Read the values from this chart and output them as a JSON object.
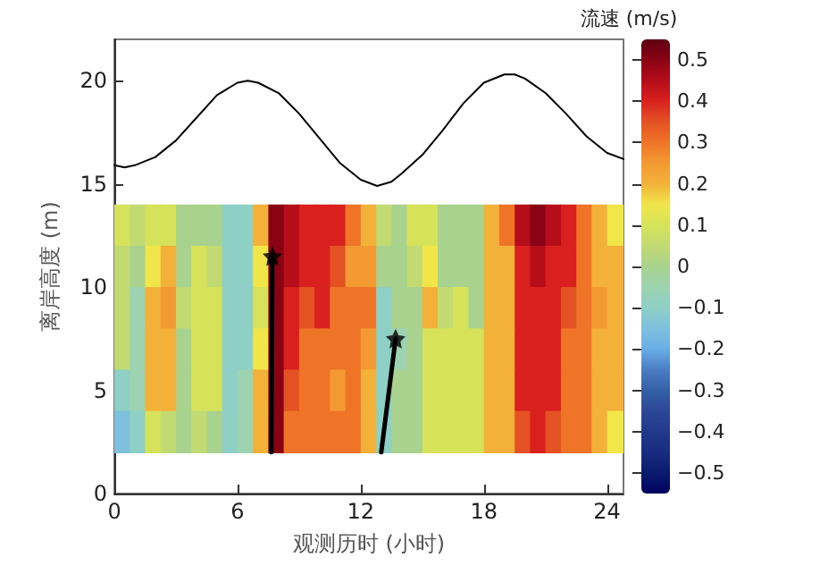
{
  "chart_data": {
    "type": "heatmap",
    "xlabel": "观测历时 (小时)",
    "ylabel": "离岸高度 (m)",
    "clabel": "流速 (m/s)",
    "xlim": [
      0,
      24.8
    ],
    "xticks": [
      0,
      6,
      12,
      18,
      24
    ],
    "ylim": [
      0,
      22
    ],
    "yticks": [
      0,
      5,
      10,
      15,
      20
    ],
    "clim": [
      -0.55,
      0.55
    ],
    "cticks": [
      -0.5,
      -0.4,
      -0.3,
      -0.2,
      -0.1,
      0,
      0.1,
      0.2,
      0.3,
      0.4,
      0.5
    ],
    "x": [
      0.375,
      1.125,
      1.875,
      2.625,
      3.375,
      4.125,
      4.875,
      5.625,
      6.375,
      7.125,
      7.875,
      8.625,
      9.375,
      10.125,
      10.875,
      11.625,
      12.375,
      13.125,
      13.875,
      14.625,
      15.375,
      16.125,
      16.875,
      17.625,
      18.375,
      19.125,
      19.875,
      20.625,
      21.375,
      22.125,
      22.875,
      23.625,
      24.375
    ],
    "y": [
      13,
      11,
      9,
      7,
      5,
      3
    ],
    "cells": [
      [
        0.1,
        0.05,
        0.1,
        0.1,
        0.0,
        0.0,
        0.0,
        -0.1,
        -0.1,
        0.2,
        0.5,
        0.45,
        0.4,
        0.4,
        0.4,
        0.3,
        0.2,
        0.05,
        0.0,
        0.1,
        0.1,
        0.0,
        0.0,
        0.0,
        0.2,
        0.3,
        0.45,
        0.5,
        0.45,
        0.4,
        0.3,
        0.2,
        0.15
      ],
      [
        0.05,
        0.0,
        0.15,
        0.2,
        0.0,
        0.1,
        0.05,
        -0.1,
        -0.1,
        0.15,
        0.5,
        0.45,
        0.4,
        0.4,
        0.35,
        0.25,
        0.25,
        0.0,
        0.0,
        0.05,
        0.15,
        0.0,
        0.0,
        0.0,
        0.2,
        0.2,
        0.4,
        0.45,
        0.4,
        0.4,
        0.3,
        0.2,
        0.2
      ],
      [
        0.05,
        -0.05,
        0.2,
        0.25,
        0.05,
        0.1,
        0.1,
        -0.1,
        -0.1,
        0.1,
        0.5,
        0.4,
        0.35,
        0.4,
        0.3,
        0.3,
        0.3,
        -0.1,
        0.0,
        0.0,
        0.2,
        0.05,
        0.1,
        0.0,
        0.2,
        0.2,
        0.4,
        0.4,
        0.4,
        0.35,
        0.3,
        0.25,
        0.2
      ],
      [
        0.05,
        -0.05,
        0.2,
        0.2,
        0.0,
        0.1,
        0.1,
        -0.1,
        -0.1,
        0.15,
        0.5,
        0.4,
        0.3,
        0.3,
        0.3,
        0.3,
        0.25,
        -0.1,
        -0.05,
        0.0,
        0.1,
        0.1,
        0.1,
        0.1,
        0.2,
        0.2,
        0.4,
        0.4,
        0.4,
        0.3,
        0.3,
        0.2,
        0.2
      ],
      [
        -0.1,
        -0.05,
        0.2,
        0.2,
        0.0,
        0.1,
        0.1,
        -0.1,
        -0.05,
        0.2,
        0.5,
        0.35,
        0.3,
        0.3,
        0.25,
        0.3,
        0.2,
        -0.1,
        0.0,
        0.0,
        0.1,
        0.1,
        0.1,
        0.1,
        0.2,
        0.2,
        0.4,
        0.4,
        0.4,
        0.3,
        0.3,
        0.2,
        0.2
      ],
      [
        -0.15,
        -0.1,
        0.1,
        0.05,
        0.0,
        0.05,
        0.0,
        -0.1,
        -0.05,
        0.2,
        0.5,
        0.3,
        0.3,
        0.3,
        0.3,
        0.3,
        0.2,
        -0.1,
        0.0,
        0.0,
        0.1,
        0.1,
        0.1,
        0.1,
        0.2,
        0.2,
        0.35,
        0.4,
        0.35,
        0.3,
        0.3,
        0.2,
        0.15
      ]
    ],
    "series": [
      {
        "type": "line",
        "color": "#000000",
        "marker": "none",
        "x": [
          0,
          0.5,
          1,
          2,
          3,
          4,
          5,
          6,
          6.5,
          7,
          8,
          9,
          10,
          11,
          12,
          12.8,
          13.5,
          14,
          15,
          16,
          17,
          18,
          19,
          19.5,
          20,
          21,
          22,
          23,
          24,
          24.8
        ],
        "values": [
          15.9,
          15.8,
          15.9,
          16.3,
          17.1,
          18.2,
          19.3,
          19.9,
          20.0,
          19.9,
          19.4,
          18.4,
          17.2,
          16.0,
          15.2,
          14.9,
          15.1,
          15.5,
          16.4,
          17.6,
          18.9,
          19.9,
          20.3,
          20.3,
          20.1,
          19.4,
          18.4,
          17.3,
          16.5,
          16.2
        ]
      },
      {
        "type": "line",
        "color": "#000000",
        "marker": "none",
        "x": [
          7.65,
          7.7
        ],
        "values": [
          2,
          11.5
        ]
      },
      {
        "type": "line",
        "color": "#000000",
        "marker": "none",
        "x": [
          13.0,
          13.7
        ],
        "values": [
          2,
          7.5
        ]
      },
      {
        "type": "scatter",
        "color": "#000000",
        "marker": "star",
        "x": [
          7.7,
          13.7
        ],
        "values": [
          11.5,
          7.5
        ]
      }
    ]
  }
}
